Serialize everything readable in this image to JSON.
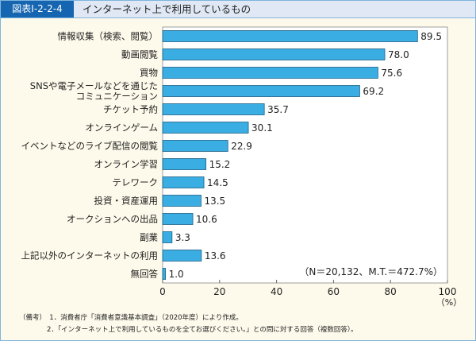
{
  "header": {
    "figure_id": "図表Ⅰ-2-2-4",
    "title": "インターネット上で利用しているもの"
  },
  "chart_data": {
    "type": "bar",
    "orientation": "horizontal",
    "title": "インターネット上で利用しているもの",
    "categories": [
      "情報収集（検索、閲覧）",
      "動画閲覧",
      "買物",
      "SNSや電子メールなどを通じた\nコミュニケーション",
      "チケット予約",
      "オンラインゲーム",
      "イベントなどのライブ配信の閲覧",
      "オンライン学習",
      "テレワーク",
      "投資・資産運用",
      "オークションへの出品",
      "副業",
      "上記以外のインターネットの利用",
      "無回答"
    ],
    "values": [
      89.5,
      78.0,
      75.6,
      69.2,
      35.7,
      30.1,
      22.9,
      15.2,
      14.5,
      13.5,
      10.6,
      3.3,
      13.6,
      1.0
    ],
    "xlim": [
      0,
      100
    ],
    "xticks": [
      0,
      20,
      40,
      60,
      80,
      100
    ],
    "xlabel": "（%）",
    "annotation": "（N＝20,132、M.T.＝472.7%）",
    "bar_color": "#3aaee2"
  },
  "notes": [
    "（備考）　1．消費者庁「消費者意識基本調査」（2020年度）により作成。",
    "2．「インターネット上で利用しているものを全てお選びください。」との問に対する回答（複数回答）。"
  ]
}
